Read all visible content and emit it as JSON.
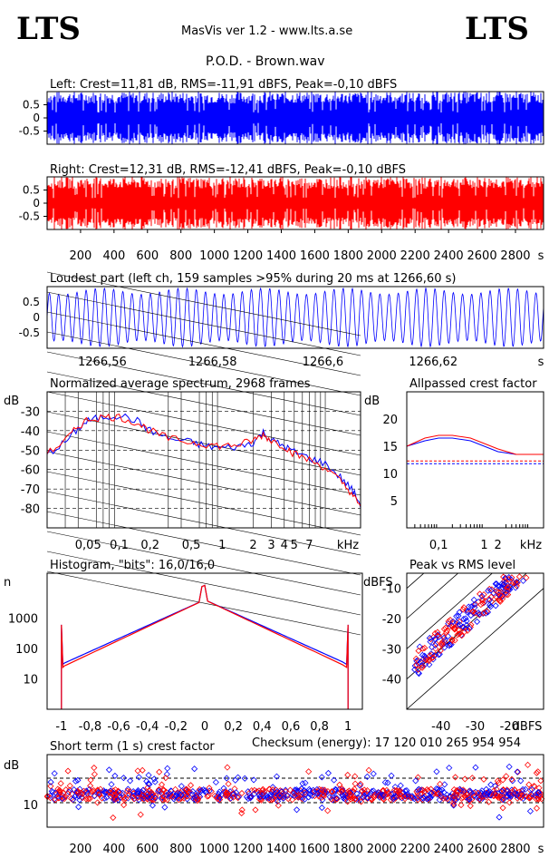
{
  "header": {
    "logo_left": "LTS",
    "logo_right": "LTS",
    "app_title": "MasVis ver 1.2 - www.lts.a.se",
    "file_title": "P.O.D. - Brown.wav"
  },
  "colors": {
    "left": "#0000ff",
    "right": "#ff0000",
    "grid": "#000000",
    "background": "#ffffff"
  },
  "chart_data": [
    {
      "id": "left-waveform",
      "type": "area",
      "title": "Left: Crest=11,81 dB, RMS=-11,91 dBFS, Peak=-0,10 dBFS",
      "ylim": [
        -1,
        1
      ],
      "yticks": [
        "0.5",
        "0",
        "-0.5"
      ],
      "xlim": [
        0,
        2968
      ],
      "crest_db": 11.81,
      "rms_dbfs": -11.91,
      "peak_dbfs": -0.1
    },
    {
      "id": "right-waveform",
      "type": "area",
      "title": "Right: Crest=12,31 dB, RMS=-12,41 dBFS, Peak=-0,10 dBFS",
      "ylim": [
        -1,
        1
      ],
      "yticks": [
        "0.5",
        "0",
        "-0.5"
      ],
      "xlim": [
        0,
        2968
      ],
      "xticks": [
        "200",
        "400",
        "600",
        "800",
        "1000",
        "1200",
        "1400",
        "1600",
        "1800",
        "2000",
        "2200",
        "2400",
        "2600",
        "2800"
      ],
      "xunit": "s",
      "crest_db": 12.31,
      "rms_dbfs": -12.41,
      "peak_dbfs": -0.1
    },
    {
      "id": "loudest-part",
      "type": "line",
      "title": "Loudest part (left  ch, 159 samples >95% during 20 ms at 1266,60 s)",
      "ylim": [
        -1,
        1
      ],
      "yticks": [
        "0.5",
        "0",
        "-0.5"
      ],
      "xlim": [
        1266.55,
        1266.64
      ],
      "xticks": [
        "1266,56",
        "1266,58",
        "1266,6",
        "1266,62"
      ],
      "xunit": "s"
    },
    {
      "id": "spectrum",
      "type": "line",
      "title": "Normalized average spectrum, 2968 frames",
      "ylabel": "dB",
      "xunit": "kHz",
      "ylim": [
        -90,
        -20
      ],
      "yticks": [
        "-30",
        "-40",
        "-50",
        "-60",
        "-70",
        "-80"
      ],
      "xticks": [
        "0,05",
        "0,1",
        "0,2",
        "0,5",
        "1",
        "2",
        "3",
        "4",
        "5",
        "7"
      ],
      "series": [
        {
          "x": [
            0.02,
            0.03,
            0.04,
            0.05,
            0.07,
            0.1,
            0.15,
            0.2,
            0.3,
            0.5,
            0.7,
            1,
            1.5,
            2,
            2.5,
            3,
            4,
            5,
            7,
            10,
            14,
            18,
            22
          ],
          "values": [
            -52,
            -46,
            -39,
            -35,
            -33,
            -32,
            -35,
            -40,
            -44,
            -46,
            -48,
            -49,
            -48,
            -46,
            -41,
            -45,
            -48,
            -51,
            -54,
            -57,
            -64,
            -70,
            -78
          ]
        },
        {
          "x": [
            0.02,
            0.03,
            0.04,
            0.05,
            0.07,
            0.1,
            0.15,
            0.2,
            0.3,
            0.5,
            0.7,
            1,
            1.5,
            2,
            2.5,
            3,
            4,
            5,
            7,
            10,
            14,
            18,
            22
          ],
          "values": [
            -52,
            -45,
            -38,
            -34,
            -33,
            -33,
            -36,
            -40,
            -44,
            -46,
            -47,
            -48,
            -47,
            -45,
            -42,
            -45,
            -48,
            -52,
            -55,
            -59,
            -66,
            -72,
            -80
          ]
        }
      ]
    },
    {
      "id": "allpassed-crest",
      "type": "line",
      "title": "Allpassed crest factor",
      "ylabel": "dB",
      "xunit": "kHz",
      "ylim": [
        0,
        25
      ],
      "yticks": [
        "20",
        "15",
        "10",
        "5"
      ],
      "xticks": [
        "0,1",
        "1",
        "2"
      ],
      "series": [
        {
          "x": [
            0.02,
            0.05,
            0.1,
            0.2,
            0.5,
            1,
            2,
            5,
            20
          ],
          "values": [
            15,
            16,
            16.5,
            16.5,
            16,
            15,
            14,
            13.5,
            13.5
          ]
        },
        {
          "x": [
            0.02,
            0.05,
            0.1,
            0.2,
            0.5,
            1,
            2,
            5,
            20
          ],
          "values": [
            15,
            16.5,
            17,
            17,
            16.5,
            15.5,
            14.5,
            13.5,
            13.5
          ]
        },
        {
          "x": [
            0.02,
            20
          ],
          "values": [
            11.8,
            11.8
          ]
        },
        {
          "x": [
            0.02,
            20
          ],
          "values": [
            12.3,
            12.3
          ]
        }
      ]
    },
    {
      "id": "histogram",
      "type": "line",
      "title": "Histogram, \"bits\": 16,0/16,0",
      "ylabel": "n",
      "yscale": "log",
      "ylim": [
        1,
        30000
      ],
      "yticks": [
        "1000",
        "100",
        "10"
      ],
      "xlim": [
        -1.1,
        1.1
      ],
      "xticks": [
        "-1",
        "-0,8",
        "-0,6",
        "-0,4",
        "-0,2",
        "0",
        "0,2",
        "0,4",
        "0,6",
        "0,8",
        "1"
      ]
    },
    {
      "id": "peak-vs-rms",
      "type": "scatter",
      "title": "Peak vs RMS level",
      "ylabel": "dBFS",
      "xlabel": "dBFS",
      "xlim": [
        -50,
        -10
      ],
      "ylim": [
        -50,
        -5
      ],
      "yticks": [
        "-10",
        "-20",
        "-30",
        "-40"
      ],
      "xticks": [
        "-40",
        "-30",
        "-20"
      ],
      "diag_labels": [
        "0 dB",
        "10",
        "20",
        "30",
        "40"
      ]
    },
    {
      "id": "short-term-crest",
      "type": "scatter",
      "title": "Short term (1 s) crest factor",
      "ylabel": "dB",
      "xlim": [
        0,
        2968
      ],
      "yticks": [
        "10"
      ],
      "xticks": [
        "200",
        "400",
        "600",
        "800",
        "1000",
        "1200",
        "1400",
        "1600",
        "1800",
        "2000",
        "2200",
        "2400",
        "2600",
        "2800"
      ],
      "xunit": "s"
    }
  ],
  "checksum": "Checksum (energy):  17 120 010 265 954 954"
}
